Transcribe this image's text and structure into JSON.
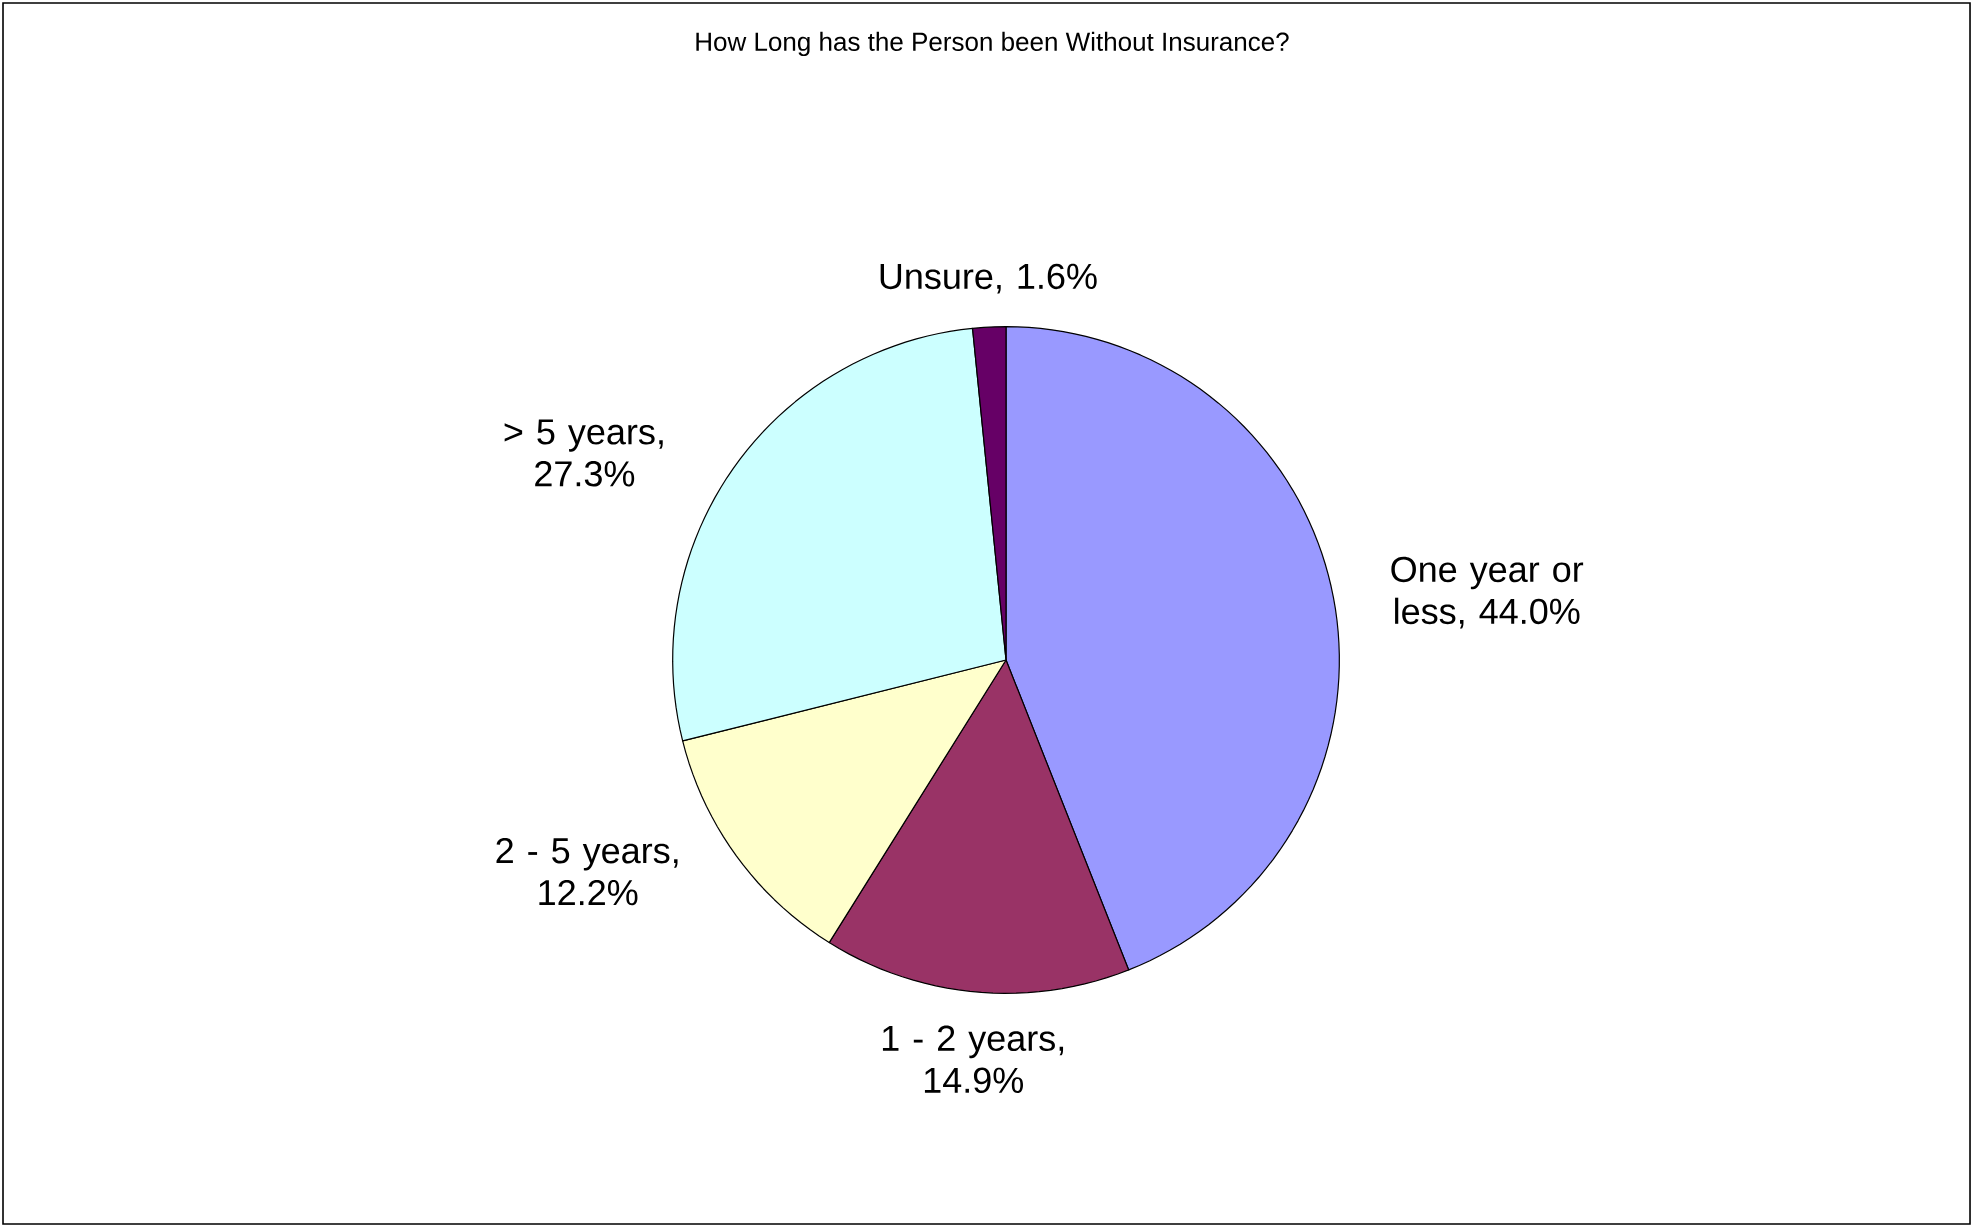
{
  "chart_data": {
    "type": "pie",
    "title": "How Long has the Person been Without Insurance?",
    "categories": [
      "One year or less",
      "1 - 2 years",
      "2 - 5 years",
      "> 5 years",
      "Unsure"
    ],
    "values": [
      44.0,
      14.9,
      12.2,
      27.3,
      1.6
    ],
    "value_labels": [
      ", 44.0%",
      ", 14.9%",
      ", 12.2%",
      ", 27.3%",
      ", 1.6%"
    ],
    "colors": [
      "#9999ff",
      "#993366",
      "#ffffcc",
      "#ccffff",
      "#660066"
    ]
  }
}
